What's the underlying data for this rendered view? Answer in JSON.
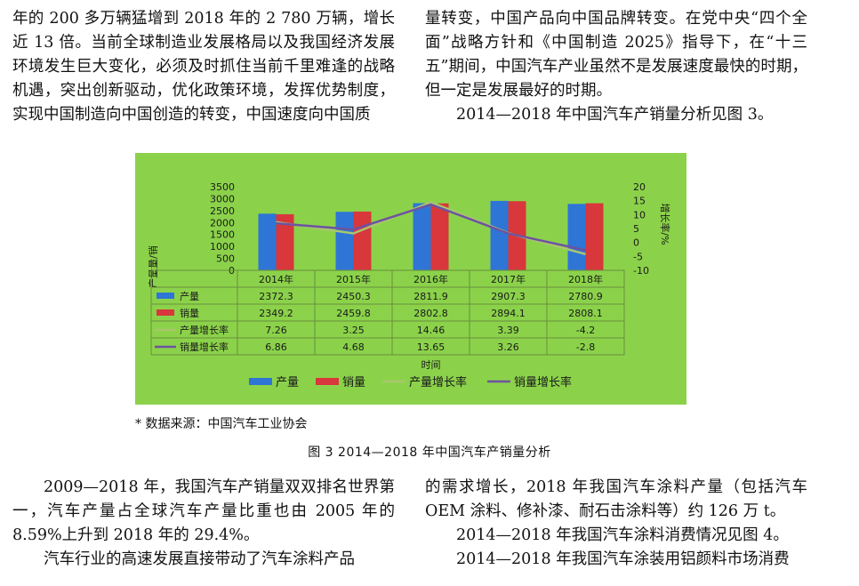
{
  "text": {
    "top_left": [
      "年的 200 多万辆猛增到 2018 年的 2 780 万辆，增长近 13 倍。当前全球制造业发展格局以及我国经济发展环境发生巨大变化，必须及时抓住当前千里难逢的战略机遇，突出创新驱动，优化政策环境，发挥优势制度，实现中国制造向中国创造的转变，中国速度向中国质"
    ],
    "top_right": [
      "量转变，中国产品向中国品牌转变。在党中央“四个全面”战略方针和《中国制造 2025》指导下，在“十三五”期间，中国汽车产业虽然不是发展速度最快的时期，但一定是发展最好的时期。",
      "2014—2018 年中国汽车产销量分析见图 3。"
    ],
    "bottom_left": [
      "2009—2018 年，我国汽车产销量双双排名世界第一，汽车产量占全球汽车产量比重也由 2005 年的 8.59%上升到 2018 年的 29.4%。",
      "汽车行业的高速发展直接带动了汽车涂料产品"
    ],
    "bottom_right": [
      "的需求增长，2018 年我国汽车涂料产量（包括汽车 OEM 涂料、修补漆、耐石击涂料等）约 126 万 t。",
      "2014—2018 年我国汽车涂料消费情况见图 4。",
      "2014—2018 年我国汽车涂装用铝颜料市场消费"
    ],
    "source_note": "* 数据来源：中国汽车工业协会",
    "caption": "图 3  2014—2018 年中国汽车产销量分析"
  },
  "chart_data": {
    "type": "bar",
    "categories": [
      "2014年",
      "2015年",
      "2016年",
      "2017年",
      "2018年"
    ],
    "series": [
      {
        "name": "产量",
        "kind": "bar",
        "axis": "left",
        "color": "#2e75d6",
        "values": [
          2372.3,
          2450.3,
          2811.9,
          2907.3,
          2780.9
        ]
      },
      {
        "name": "销量",
        "kind": "bar",
        "axis": "left",
        "color": "#d8373b",
        "values": [
          2349.2,
          2459.8,
          2802.8,
          2894.1,
          2808.1
        ]
      },
      {
        "name": "产量增长率",
        "kind": "line",
        "axis": "right",
        "color": "#a9c66f",
        "values": [
          7.26,
          3.25,
          14.46,
          3.39,
          -4.2
        ]
      },
      {
        "name": "销量增长率",
        "kind": "line",
        "axis": "right",
        "color": "#6e52a1",
        "values": [
          6.86,
          4.68,
          13.65,
          3.26,
          -2.8
        ]
      }
    ],
    "table_values": [
      [
        "2372.3",
        "2450.3",
        "2811.9",
        "2907.3",
        "2780.9"
      ],
      [
        "2349.2",
        "2459.8",
        "2802.8",
        "2894.1",
        "2808.1"
      ],
      [
        "7.26",
        "3.25",
        "14.46",
        "3.39",
        "-4.2"
      ],
      [
        "6.86",
        "4.68",
        "13.65",
        "3.26",
        "-2.8"
      ]
    ],
    "ylabel": "产量量/销",
    "y2label": "增长率/%",
    "xlabel": "时间",
    "ylim": [
      0,
      3500
    ],
    "y_ticks": [
      "3500",
      "3000",
      "2500",
      "2000",
      "1500",
      "1000",
      "500",
      "0"
    ],
    "y2lim": [
      -10,
      20
    ],
    "y2_ticks": [
      "20",
      "15",
      "10",
      "5",
      "0",
      "-5",
      "-10"
    ],
    "legend_position": "bottom",
    "data_table": true
  }
}
